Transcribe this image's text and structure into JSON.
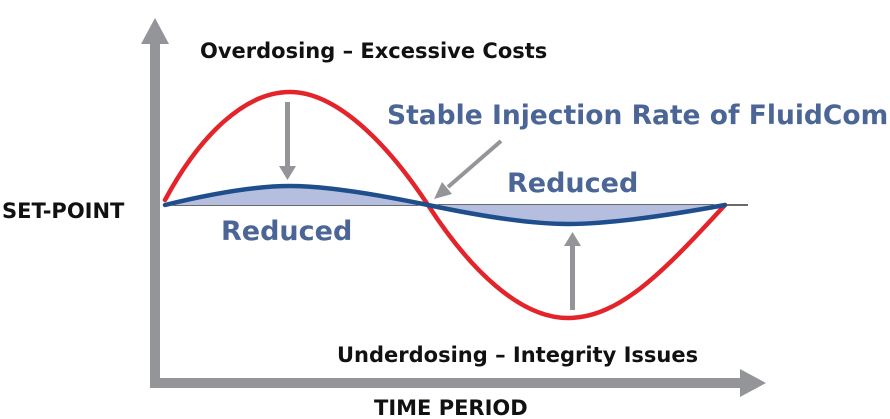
{
  "labels": {
    "overdosing": "Overdosing – Excessive Costs",
    "underdosing": "Underdosing – Integrity Issues",
    "setpoint": "SET-POINT",
    "time_period": "TIME PERIOD",
    "stable": "Stable Injection Rate of FluidCom",
    "reduced_left": "Reduced",
    "reduced_right": "Reduced"
  },
  "colors": {
    "axis": "#939598",
    "unstable_curve": "#e3242b",
    "stable_curve": "#1f4e8c",
    "reduced_fill": "#b6bee0",
    "label_blue": "#4b6696",
    "setpoint_line": "#111111"
  }
}
